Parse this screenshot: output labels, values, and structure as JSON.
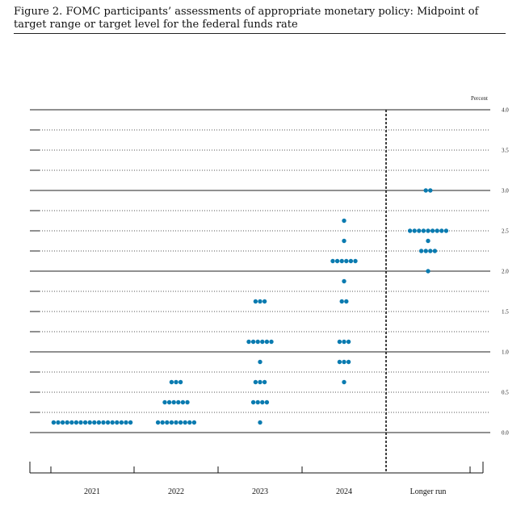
{
  "caption": {
    "text": "Figure 2.  FOMC participants’ assessments of appropriate monetary policy: Midpoint of target range or target level for the federal funds rate"
  },
  "chart_data": {
    "type": "scatter",
    "title": "",
    "ylabel": "Percent",
    "xlabel": "",
    "ylim": [
      0,
      4.0
    ],
    "yticks_labeled": [
      "4.0",
      "3.5",
      "3.0",
      "2.5",
      "2.0",
      "1.5",
      "1.0",
      "0.5",
      "0.0"
    ],
    "grid": "dotted every 0.25, solid at each 1.0",
    "categories": [
      "2021",
      "2022",
      "2023",
      "2024",
      "Longer run"
    ],
    "separator_before": "Longer run",
    "dot_color": "#0a7bb0",
    "series": [
      {
        "category": "2021",
        "points": [
          {
            "y": 0.125,
            "count": 18
          }
        ]
      },
      {
        "category": "2022",
        "points": [
          {
            "y": 0.125,
            "count": 9
          },
          {
            "y": 0.375,
            "count": 6
          },
          {
            "y": 0.625,
            "count": 3
          }
        ]
      },
      {
        "category": "2023",
        "points": [
          {
            "y": 0.125,
            "count": 1
          },
          {
            "y": 0.375,
            "count": 4
          },
          {
            "y": 0.625,
            "count": 3
          },
          {
            "y": 0.875,
            "count": 1
          },
          {
            "y": 1.125,
            "count": 6
          },
          {
            "y": 1.625,
            "count": 3
          }
        ]
      },
      {
        "category": "2024",
        "points": [
          {
            "y": 0.625,
            "count": 1
          },
          {
            "y": 0.875,
            "count": 3
          },
          {
            "y": 1.125,
            "count": 3
          },
          {
            "y": 1.625,
            "count": 2
          },
          {
            "y": 1.875,
            "count": 1
          },
          {
            "y": 2.125,
            "count": 6
          },
          {
            "y": 2.375,
            "count": 1
          },
          {
            "y": 2.625,
            "count": 1
          }
        ]
      },
      {
        "category": "Longer run",
        "points": [
          {
            "y": 2.0,
            "count": 1
          },
          {
            "y": 2.25,
            "count": 4
          },
          {
            "y": 2.375,
            "count": 1
          },
          {
            "y": 2.5,
            "count": 9
          },
          {
            "y": 3.0,
            "count": 2
          }
        ]
      }
    ]
  }
}
